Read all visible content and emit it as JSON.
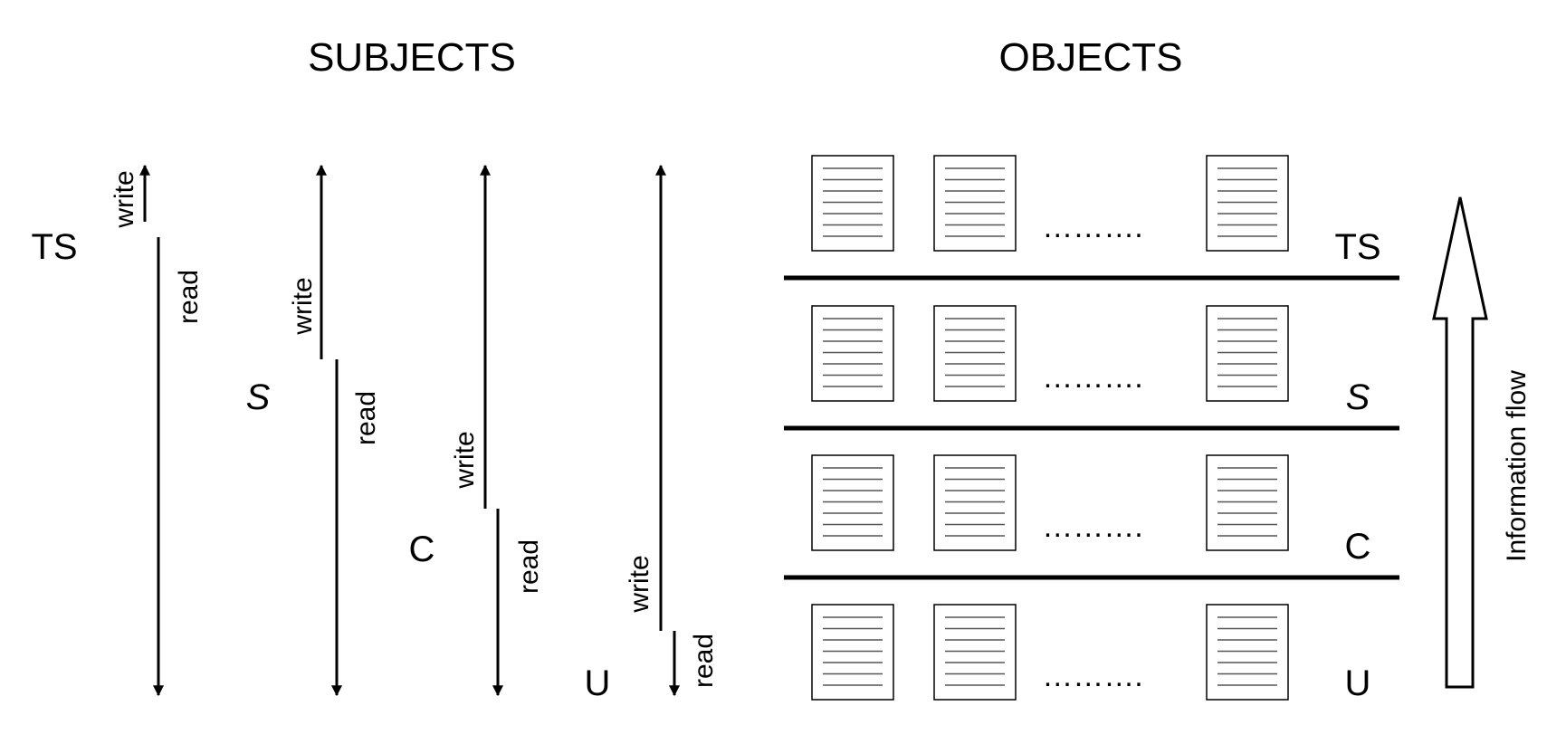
{
  "headers": {
    "subjects": "SUBJECTS",
    "objects": "OBJECTS"
  },
  "levels": [
    "TS",
    "S",
    "C",
    "U"
  ],
  "subjects": [
    {
      "level": "TS",
      "write_label": "write",
      "read_label": "read"
    },
    {
      "level": "S",
      "write_label": "write",
      "read_label": "read"
    },
    {
      "level": "C",
      "write_label": "write",
      "read_label": "read"
    },
    {
      "level": "U",
      "write_label": "write",
      "read_label": "read"
    }
  ],
  "objects": {
    "ellipsis": "……….",
    "docs_per_row": 3
  },
  "flow_label": "Information flow",
  "colors": {
    "stroke": "#000000",
    "doc_lines": "#555555",
    "background": "#ffffff"
  }
}
